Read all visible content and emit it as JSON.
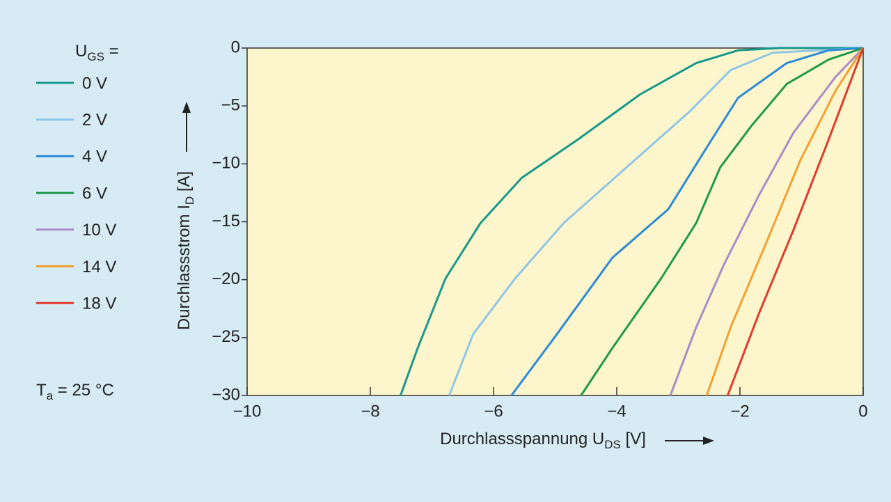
{
  "chart_data": {
    "type": "line",
    "legend_title": {
      "main": "U",
      "sub": "GS",
      "suffix": " ="
    },
    "annotation": {
      "main": "T",
      "sub": "a",
      "suffix": " = 25 °C"
    },
    "x_label": {
      "main": "Durchlassspannung U",
      "sub": "DS",
      "suffix": " [V]"
    },
    "y_label": {
      "main": "Durchlassstrom I",
      "sub": "D",
      "suffix": " [A]"
    },
    "xlim": [
      -10,
      0
    ],
    "ylim": [
      -30,
      0
    ],
    "xticks": [
      {
        "value": -10,
        "label": "−10"
      },
      {
        "value": -8,
        "label": "−8"
      },
      {
        "value": -6,
        "label": "−6"
      },
      {
        "value": -4,
        "label": "−4"
      },
      {
        "value": -2,
        "label": "−2"
      },
      0
    ],
    "yticks": [
      0,
      {
        "value": -5,
        "label": "−5"
      },
      {
        "value": -10,
        "label": "−10"
      },
      {
        "value": -15,
        "label": "−15"
      },
      {
        "value": -20,
        "label": "−20"
      },
      {
        "value": -25,
        "label": "−25"
      },
      {
        "value": -30,
        "label": "−30"
      }
    ],
    "series": [
      {
        "name": "0 V",
        "color": "#17988a",
        "x": [
          -7.51,
          -7.23,
          -6.78,
          -6.21,
          -5.54,
          -4.63,
          -3.62,
          -2.71,
          -2.03,
          -1.36,
          0
        ],
        "values": [
          -30,
          -25.9,
          -19.9,
          -15.1,
          -11.2,
          -7.9,
          -4.0,
          -1.3,
          -0.2,
          0,
          0
        ]
      },
      {
        "name": "2 V",
        "color": "#8fc6e8",
        "x": [
          -6.72,
          -6.33,
          -5.65,
          -4.86,
          -3.84,
          -2.82,
          -2.15,
          -1.47,
          0
        ],
        "values": [
          -30,
          -24.7,
          -19.9,
          -15.1,
          -10.3,
          -5.5,
          -1.9,
          -0.4,
          0
        ]
      },
      {
        "name": "4 V",
        "color": "#2a8bd5",
        "x": [
          -5.71,
          -4.97,
          -4.07,
          -3.16,
          -2.6,
          -2.03,
          -1.24,
          -0.56,
          0
        ],
        "values": [
          -30,
          -24.7,
          -18.1,
          -13.9,
          -9.1,
          -4.3,
          -1.3,
          -0.2,
          0
        ]
      },
      {
        "name": "6 V",
        "color": "#1f9a48",
        "x": [
          -4.58,
          -4.07,
          -3.28,
          -2.71,
          -2.32,
          -1.81,
          -1.24,
          -0.56,
          0
        ],
        "values": [
          -30,
          -25.9,
          -19.9,
          -15.1,
          -10.3,
          -6.7,
          -3.1,
          -1.0,
          0
        ]
      },
      {
        "name": "10 V",
        "color": "#a88bc8",
        "x": [
          -3.13,
          -2.71,
          -2.26,
          -1.69,
          -1.13,
          -0.45,
          0
        ],
        "values": [
          -30,
          -24.1,
          -18.7,
          -12.7,
          -7.3,
          -2.5,
          0
        ]
      },
      {
        "name": "14 V",
        "color": "#f4a032",
        "x": [
          -2.54,
          -2.15,
          -1.58,
          -1.02,
          -0.45,
          0
        ],
        "values": [
          -30,
          -24.1,
          -16.9,
          -9.7,
          -3.7,
          0
        ]
      },
      {
        "name": "18 V",
        "color": "#e23a2a",
        "x": [
          -2.2,
          -1.69,
          -1.13,
          -0.56,
          0
        ],
        "values": [
          -30,
          -22.9,
          -15.7,
          -7.9,
          0
        ]
      }
    ]
  }
}
